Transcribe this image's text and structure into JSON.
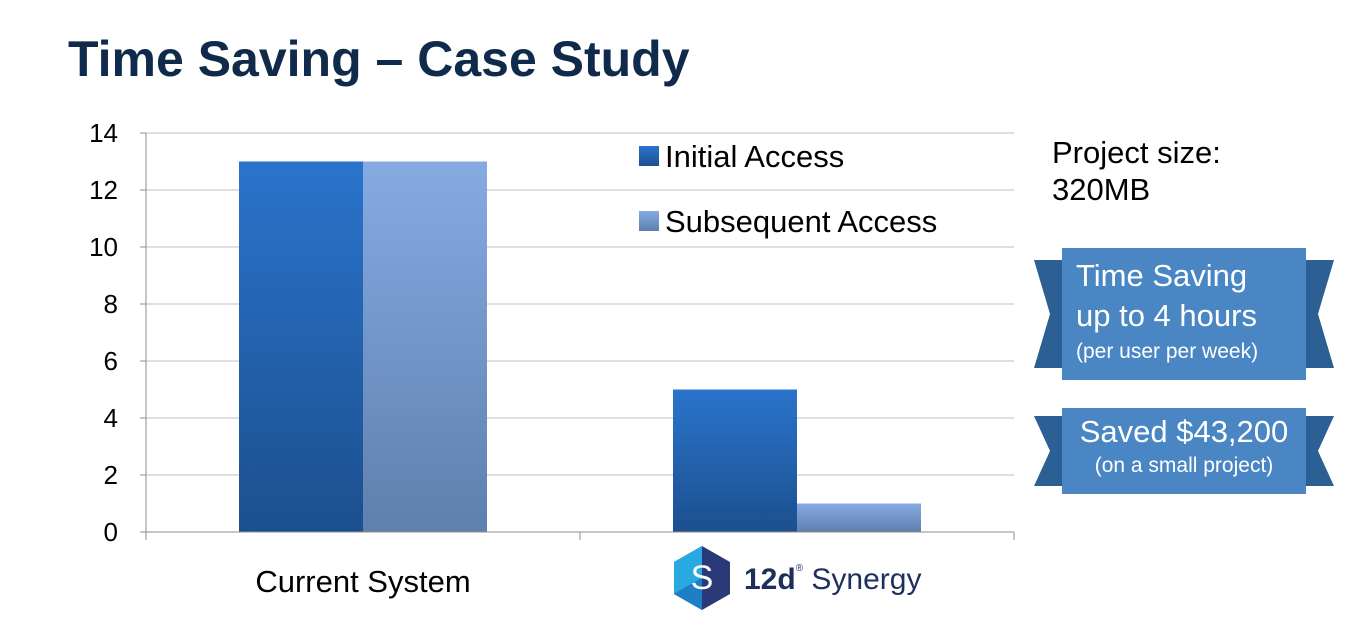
{
  "title": "Time Saving – Case Study",
  "project": {
    "line1": "Project size:",
    "line2": "320MB"
  },
  "banners": {
    "time": {
      "line1": "Time Saving",
      "line2": "up to 4 hours",
      "line3": "(per user per week)"
    },
    "saved": {
      "line1": "Saved $43,200",
      "line2": "(on a small project)"
    }
  },
  "logo": {
    "letter": "S",
    "brand": "12d",
    "sup": "®",
    "product": "Synergy",
    "icon": "12d-synergy-hexagon-icon"
  },
  "colors": {
    "title": "#0f2a4a",
    "initial": "#2a6fc0",
    "subsequent": "#7fa7de",
    "banner": "#4a86c4",
    "banner_tail": "#2c5f93"
  },
  "chart_data": {
    "type": "bar",
    "categories": [
      "Current System",
      ""
    ],
    "series": [
      {
        "name": "Initial Access",
        "values": [
          13,
          5
        ]
      },
      {
        "name": "Subsequent Access",
        "values": [
          13,
          1
        ]
      }
    ],
    "yticks": [
      "0",
      "2",
      "4",
      "6",
      "8",
      "10",
      "12",
      "14"
    ],
    "ylim": [
      0,
      14
    ],
    "grid": true,
    "legend": "top-right"
  }
}
